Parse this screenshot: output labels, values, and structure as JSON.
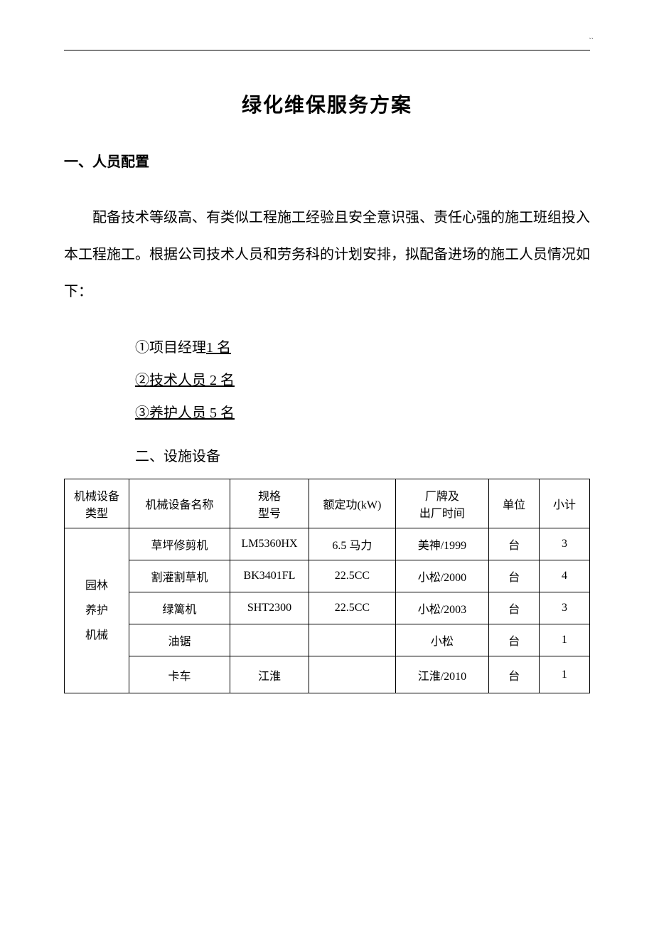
{
  "header": {
    "corner_mark": "``"
  },
  "title": "绿化维保服务方案",
  "section1": {
    "heading": "一、人员配置",
    "paragraph": "配备技术等级高、有类似工程施工经验且安全意识强、责任心强的施工班组投入本工程施工。根据公司技术人员和劳务科的计划安排，拟配备进场的施工人员情况如下："
  },
  "personnel": {
    "items": [
      {
        "prefix": "①项目经理",
        "count_text": "1 名"
      },
      {
        "prefix": "②技术人员 2 名",
        "count_text": ""
      },
      {
        "prefix": "③养护人员 5 名",
        "count_text": ""
      }
    ]
  },
  "section2": {
    "heading": "二、设施设备"
  },
  "table": {
    "columns": [
      "机械设备\n类型",
      "机械设备名称",
      "规格\n型号",
      "额定功(kW)",
      "厂牌及\n出厂时间",
      "单位",
      "小计"
    ],
    "type_group": "园林\n养护\n机械",
    "rows": [
      {
        "name": "草坪修剪机",
        "model": "LM5360HX",
        "power": "6.5 马力",
        "brand": "美神/1999",
        "unit": "台",
        "count": "3"
      },
      {
        "name": "割灌割草机",
        "model": "BK3401FL",
        "power": "22.5CC",
        "brand": "小松/2000",
        "unit": "台",
        "count": "4"
      },
      {
        "name": "绿篱机",
        "model": "SHT2300",
        "power": "22.5CC",
        "brand": "小松/2003",
        "unit": "台",
        "count": "3"
      },
      {
        "name": "油锯",
        "model": "",
        "power": "",
        "brand": "小松",
        "unit": "台",
        "count": "1"
      },
      {
        "name": "卡车",
        "model": "江淮",
        "power": "",
        "brand": "江淮/2010",
        "unit": "台",
        "count": "1"
      }
    ]
  }
}
